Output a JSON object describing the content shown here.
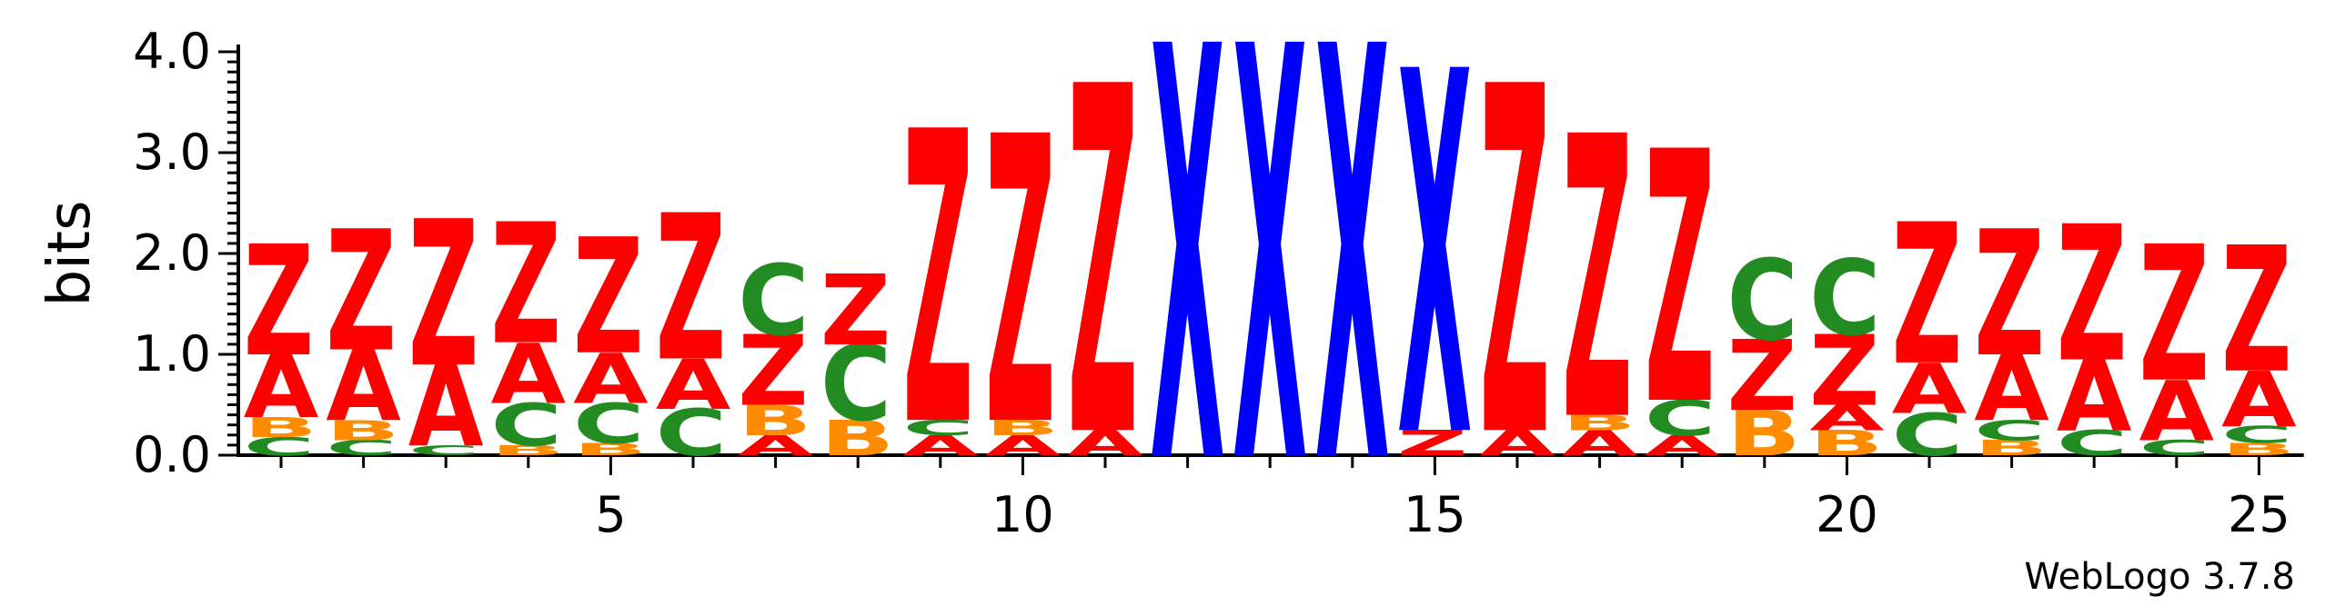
{
  "chart_data": {
    "type": "sequence-logo",
    "ylabel": "bits",
    "ylim": [
      0,
      4.0
    ],
    "yticks": [
      "0.0",
      "1.0",
      "2.0",
      "3.0",
      "4.0"
    ],
    "xticks": [
      5,
      10,
      15,
      20,
      25
    ],
    "footer": "WebLogo 3.7.8",
    "colors": {
      "Z": "#ff0000",
      "A": "#ff0000",
      "X": "#0000ff",
      "C": "#228b22",
      "B": "#ff8c00"
    },
    "positions": [
      {
        "pos": 1,
        "stack": [
          {
            "l": "C",
            "h": 0.18
          },
          {
            "l": "B",
            "h": 0.2
          },
          {
            "l": "A",
            "h": 0.62
          },
          {
            "l": "Z",
            "h": 1.1
          }
        ]
      },
      {
        "pos": 2,
        "stack": [
          {
            "l": "C",
            "h": 0.15
          },
          {
            "l": "B",
            "h": 0.2
          },
          {
            "l": "A",
            "h": 0.7
          },
          {
            "l": "Z",
            "h": 1.2
          }
        ]
      },
      {
        "pos": 3,
        "stack": [
          {
            "l": "C",
            "h": 0.1
          },
          {
            "l": "A",
            "h": 0.8
          },
          {
            "l": "Z",
            "h": 1.45
          }
        ]
      },
      {
        "pos": 4,
        "stack": [
          {
            "l": "B",
            "h": 0.1
          },
          {
            "l": "C",
            "h": 0.42
          },
          {
            "l": "A",
            "h": 0.6
          },
          {
            "l": "Z",
            "h": 1.2
          }
        ]
      },
      {
        "pos": 5,
        "stack": [
          {
            "l": "B",
            "h": 0.12
          },
          {
            "l": "C",
            "h": 0.4
          },
          {
            "l": "A",
            "h": 0.5
          },
          {
            "l": "Z",
            "h": 1.15
          }
        ]
      },
      {
        "pos": 6,
        "stack": [
          {
            "l": "C",
            "h": 0.46
          },
          {
            "l": "A",
            "h": 0.5
          },
          {
            "l": "Z",
            "h": 1.45
          }
        ]
      },
      {
        "pos": 7,
        "stack": [
          {
            "l": "A",
            "h": 0.2
          },
          {
            "l": "B",
            "h": 0.3
          },
          {
            "l": "Z",
            "h": 0.7
          },
          {
            "l": "C",
            "h": 0.7
          }
        ]
      },
      {
        "pos": 8,
        "stack": [
          {
            "l": "B",
            "h": 0.35
          },
          {
            "l": "C",
            "h": 0.75
          },
          {
            "l": "Z",
            "h": 0.7
          }
        ]
      },
      {
        "pos": 9,
        "stack": [
          {
            "l": "A",
            "h": 0.2
          },
          {
            "l": "C",
            "h": 0.15
          },
          {
            "l": "Z",
            "h": 2.9
          }
        ]
      },
      {
        "pos": 10,
        "stack": [
          {
            "l": "A",
            "h": 0.2
          },
          {
            "l": "B",
            "h": 0.15
          },
          {
            "l": "Z",
            "h": 2.85
          }
        ]
      },
      {
        "pos": 11,
        "stack": [
          {
            "l": "A",
            "h": 0.25
          },
          {
            "l": "Z",
            "h": 3.45
          }
        ]
      },
      {
        "pos": 12,
        "stack": [
          {
            "l": "X",
            "h": 4.1
          }
        ]
      },
      {
        "pos": 13,
        "stack": [
          {
            "l": "X",
            "h": 4.1
          }
        ]
      },
      {
        "pos": 14,
        "stack": [
          {
            "l": "X",
            "h": 4.1
          }
        ]
      },
      {
        "pos": 15,
        "stack": [
          {
            "l": "Z",
            "h": 0.25
          },
          {
            "l": "X",
            "h": 3.6
          }
        ]
      },
      {
        "pos": 16,
        "stack": [
          {
            "l": "A",
            "h": 0.25
          },
          {
            "l": "Z",
            "h": 3.45
          }
        ]
      },
      {
        "pos": 17,
        "stack": [
          {
            "l": "A",
            "h": 0.25
          },
          {
            "l": "B",
            "h": 0.15
          },
          {
            "l": "Z",
            "h": 2.8
          }
        ]
      },
      {
        "pos": 18,
        "stack": [
          {
            "l": "A",
            "h": 0.2
          },
          {
            "l": "C",
            "h": 0.35
          },
          {
            "l": "Z",
            "h": 2.5
          }
        ]
      },
      {
        "pos": 19,
        "stack": [
          {
            "l": "B",
            "h": 0.45
          },
          {
            "l": "Z",
            "h": 0.7
          },
          {
            "l": "C",
            "h": 0.8
          }
        ]
      },
      {
        "pos": 20,
        "stack": [
          {
            "l": "B",
            "h": 0.25
          },
          {
            "l": "A",
            "h": 0.25
          },
          {
            "l": "Z",
            "h": 0.7
          },
          {
            "l": "C",
            "h": 0.75
          }
        ]
      },
      {
        "pos": 21,
        "stack": [
          {
            "l": "C",
            "h": 0.42
          },
          {
            "l": "A",
            "h": 0.5
          },
          {
            "l": "Z",
            "h": 1.4
          }
        ]
      },
      {
        "pos": 22,
        "stack": [
          {
            "l": "B",
            "h": 0.15
          },
          {
            "l": "C",
            "h": 0.2
          },
          {
            "l": "A",
            "h": 0.65
          },
          {
            "l": "Z",
            "h": 1.25
          }
        ]
      },
      {
        "pos": 23,
        "stack": [
          {
            "l": "C",
            "h": 0.25
          },
          {
            "l": "A",
            "h": 0.7
          },
          {
            "l": "Z",
            "h": 1.35
          }
        ]
      },
      {
        "pos": 24,
        "stack": [
          {
            "l": "C",
            "h": 0.15
          },
          {
            "l": "A",
            "h": 0.6
          },
          {
            "l": "Z",
            "h": 1.35
          }
        ]
      },
      {
        "pos": 25,
        "stack": [
          {
            "l": "B",
            "h": 0.12
          },
          {
            "l": "C",
            "h": 0.17
          },
          {
            "l": "A",
            "h": 0.55
          },
          {
            "l": "Z",
            "h": 1.25
          }
        ]
      }
    ]
  }
}
